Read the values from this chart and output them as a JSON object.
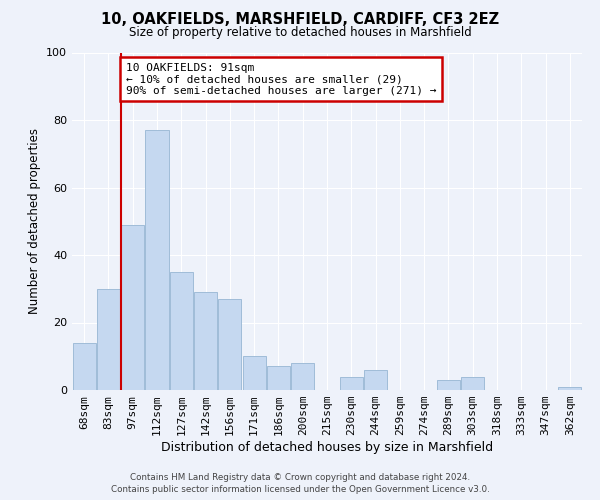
{
  "title": "10, OAKFIELDS, MARSHFIELD, CARDIFF, CF3 2EZ",
  "subtitle": "Size of property relative to detached houses in Marshfield",
  "xlabel": "Distribution of detached houses by size in Marshfield",
  "ylabel": "Number of detached properties",
  "categories": [
    "68sqm",
    "83sqm",
    "97sqm",
    "112sqm",
    "127sqm",
    "142sqm",
    "156sqm",
    "171sqm",
    "186sqm",
    "200sqm",
    "215sqm",
    "230sqm",
    "244sqm",
    "259sqm",
    "274sqm",
    "289sqm",
    "303sqm",
    "318sqm",
    "333sqm",
    "347sqm",
    "362sqm"
  ],
  "values": [
    14,
    30,
    49,
    77,
    35,
    29,
    27,
    10,
    7,
    8,
    0,
    4,
    6,
    0,
    0,
    3,
    4,
    0,
    0,
    0,
    1
  ],
  "bar_color": "#c5d8f0",
  "bar_edge_color": "#a0bcd8",
  "vline_color": "#cc0000",
  "annotation_text": "10 OAKFIELDS: 91sqm\n← 10% of detached houses are smaller (29)\n90% of semi-detached houses are larger (271) →",
  "annotation_box_color": "#ffffff",
  "annotation_box_edge_color": "#cc0000",
  "ylim": [
    0,
    100
  ],
  "background_color": "#eef2fa",
  "plot_background": "#eef2fa",
  "grid_color": "#ffffff",
  "footer_line1": "Contains HM Land Registry data © Crown copyright and database right 2024.",
  "footer_line2": "Contains public sector information licensed under the Open Government Licence v3.0."
}
